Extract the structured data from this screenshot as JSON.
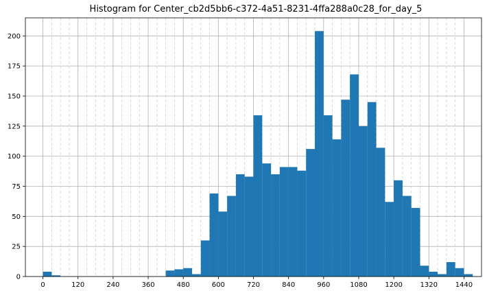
{
  "chart_data": {
    "type": "bar",
    "title": "Histogram for Center_cb2d5bb6-c372-4a51-8231-4ffa288a0c28_for_day_5",
    "xlabel": "",
    "ylabel": "",
    "xlim": [
      -60,
      1500
    ],
    "ylim": [
      0,
      215
    ],
    "bar_color": "#1f77b4",
    "grid": true,
    "x_ticks": [
      0,
      120,
      240,
      360,
      480,
      600,
      720,
      840,
      960,
      1080,
      1200,
      1320,
      1440
    ],
    "x_tick_labels": [
      "0",
      "120",
      "240",
      "360",
      "480",
      "600",
      "720",
      "840",
      "960",
      "1080",
      "1200",
      "1320",
      "1440"
    ],
    "y_ticks": [
      0,
      25,
      50,
      75,
      100,
      125,
      150,
      175,
      200
    ],
    "y_tick_labels": [
      "0",
      "25",
      "50",
      "75",
      "100",
      "125",
      "150",
      "175",
      "200"
    ],
    "minor_x_ticks": [
      30,
      60,
      90,
      150,
      180,
      210,
      270,
      300,
      330,
      390,
      420,
      450,
      510,
      540,
      570,
      630,
      660,
      690,
      750,
      780,
      810,
      870,
      900,
      930,
      990,
      1020,
      1050,
      1110,
      1140,
      1170,
      1230,
      1260,
      1290,
      1350,
      1380,
      1410
    ],
    "bin_start": 0,
    "bin_width": 30,
    "values": [
      4,
      1,
      0,
      0,
      0,
      0,
      0,
      0,
      0,
      0,
      0,
      0,
      0,
      0,
      5,
      6,
      7,
      2,
      30,
      69,
      54,
      67,
      85,
      83,
      134,
      94,
      85,
      91,
      91,
      88,
      106,
      204,
      134,
      114,
      147,
      168,
      125,
      145,
      107,
      62,
      80,
      67,
      57,
      9,
      4,
      2,
      12,
      7,
      2
    ]
  }
}
